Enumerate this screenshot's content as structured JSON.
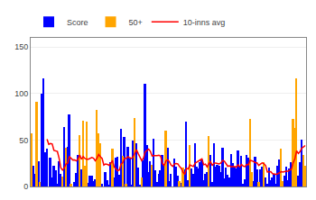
{
  "chart_data": {
    "type": "bar",
    "categories": [
      null,
      null,
      null,
      null,
      null,
      null,
      null,
      null,
      null,
      null,
      null,
      null,
      null,
      null,
      null,
      null,
      null,
      null,
      null,
      null,
      null,
      null,
      null,
      null,
      null,
      null,
      null,
      null,
      null,
      null,
      null,
      null,
      null,
      null,
      null,
      null,
      null,
      null,
      null,
      null,
      null,
      null,
      null,
      null,
      null,
      null,
      null,
      null,
      null,
      null,
      null,
      null,
      null,
      null,
      null,
      null,
      null,
      null,
      null,
      null,
      null,
      null,
      null,
      null,
      null,
      null,
      null,
      null,
      null,
      null,
      null,
      null,
      null,
      null,
      null,
      null,
      null,
      null,
      null,
      null,
      null,
      null,
      null,
      null,
      null,
      null,
      null,
      null,
      null,
      null,
      null,
      null,
      null,
      null,
      null,
      null,
      null,
      null,
      null,
      null,
      null,
      null,
      null,
      null,
      null,
      null,
      null,
      null,
      null,
      null,
      null,
      null,
      null,
      null,
      null,
      null,
      null,
      null,
      null,
      null,
      null,
      null,
      null,
      null,
      null,
      null,
      null,
      null,
      null,
      null,
      null,
      null,
      null,
      null,
      null,
      null,
      null,
      null,
      null,
      null,
      null,
      null,
      null,
      null,
      null,
      null,
      null,
      null,
      null,
      null,
      null,
      null,
      null,
      null,
      null,
      null,
      null,
      null,
      null,
      null
    ],
    "series": [
      {
        "name": "Score",
        "type": "bar",
        "color": "#0000ff",
        "values": [
          null,
          22,
          14,
          null,
          27,
          null,
          100,
          116,
          37,
          41,
          null,
          31,
          10,
          22,
          17,
          3,
          27,
          14,
          null,
          64,
          null,
          43,
          78,
          null,
          0,
          5,
          15,
          34,
          null,
          18,
          null,
          null,
          null,
          4,
          12,
          12,
          6,
          8,
          null,
          null,
          null,
          3,
          0,
          16,
          7,
          2,
          26,
          null,
          10,
          31,
          32,
          13,
          62,
          null,
          53,
          null,
          43,
          30,
          1,
          49,
          null,
          47,
          20,
          2,
          null,
          28,
          111,
          45,
          16,
          27,
          null,
          51,
          17,
          5,
          14,
          17,
          34,
          24,
          null,
          42,
          6,
          14,
          0,
          30,
          21,
          12,
          null,
          4,
          null,
          18,
          70,
          7,
          null,
          19,
          14,
          47,
          21,
          19,
          26,
          29,
          7,
          14,
          16,
          null,
          34,
          5,
          47,
          21,
          23,
          22,
          16,
          42,
          9,
          20,
          13,
          10,
          35,
          25,
          21,
          19,
          39,
          21,
          33,
          3,
          8,
          34,
          31,
          null,
          null,
          6,
          32,
          18,
          null,
          18,
          21,
          null,
          10,
          3,
          20,
          7,
          10,
          14,
          3,
          22,
          29,
          null,
          null,
          12,
          21,
          7,
          19,
          26,
          null,
          null,
          null,
          12,
          26,
          50,
          null,
          null
        ]
      },
      {
        "name": "50+",
        "type": "bar",
        "color": "#ffa500",
        "values": [
          57,
          null,
          null,
          91,
          null,
          5,
          null,
          null,
          null,
          null,
          0,
          null,
          null,
          null,
          null,
          null,
          null,
          null,
          11,
          null,
          42,
          null,
          null,
          3,
          null,
          null,
          null,
          null,
          55,
          null,
          71,
          22,
          70,
          null,
          null,
          null,
          null,
          null,
          82,
          57,
          47,
          null,
          null,
          null,
          null,
          null,
          null,
          41,
          null,
          null,
          null,
          null,
          null,
          33,
          null,
          3,
          null,
          null,
          null,
          null,
          74,
          null,
          null,
          null,
          10,
          null,
          null,
          null,
          null,
          null,
          23,
          null,
          null,
          null,
          null,
          null,
          null,
          null,
          60,
          null,
          null,
          null,
          null,
          null,
          null,
          null,
          6,
          null,
          20,
          null,
          null,
          null,
          45,
          null,
          null,
          null,
          null,
          null,
          null,
          null,
          null,
          null,
          null,
          54,
          null,
          null,
          null,
          null,
          null,
          null,
          null,
          null,
          null,
          null,
          null,
          null,
          null,
          null,
          null,
          null,
          null,
          null,
          null,
          null,
          null,
          null,
          null,
          73,
          16,
          null,
          null,
          null,
          5,
          null,
          null,
          26,
          null,
          null,
          null,
          null,
          null,
          null,
          null,
          null,
          null,
          41,
          6,
          null,
          null,
          null,
          null,
          null,
          73,
          63,
          116,
          null,
          null,
          null,
          34,
          22
        ]
      },
      {
        "name": "10-inns avg",
        "type": "line",
        "color": "#ff0000",
        "values": [
          null,
          null,
          null,
          null,
          null,
          null,
          null,
          null,
          null,
          51,
          45.3,
          46.2,
          45.8,
          38.9,
          37.9,
          37.7,
          30.4,
          20.2,
          17.6,
          19.9,
          24.1,
          25.3,
          32.1,
          30.2,
          28.5,
          28.7,
          27.5,
          29.5,
          33.9,
          29.3,
          32.2,
          30.1,
          29.3,
          29.4,
          30.6,
          31.3,
          30.4,
          27.8,
          30.5,
          34.4,
          32,
          30.1,
          23.1,
          24.3,
          23.8,
          22.8,
          24.8,
          28.1,
          20.9,
          18.3,
          16.8,
          17.8,
          24,
          25.7,
          30.3,
          30.4,
          32.1,
          31,
          30.1,
          31.9,
          36.1,
          39.5,
          35.3,
          32.2,
          27.9,
          30.4,
          37.2,
          38.7,
          40.2,
          38,
          32.9,
          33.3,
          33,
          33.3,
          33.7,
          32.6,
          24.9,
          22.8,
          27.2,
          28.7,
          27,
          23.3,
          21.6,
          24.1,
          24.8,
          24.3,
          21.5,
          19.5,
          15.5,
          13.1,
          19.5,
          18.8,
          23.3,
          22.2,
          21.5,
          25,
          26.5,
          28,
          28.6,
          29.7,
          23.4,
          24.1,
          21.2,
          24.7,
          26.7,
          22.5,
          25.1,
          25.3,
          25,
          24.3,
          25.2,
          28,
          27.3,
          23.9,
          21.8,
          22.3,
          21.1,
          21.5,
          21.3,
          21,
          23.3,
          21.2,
          23.6,
          21.9,
          21.4,
          23.8,
          23.4,
          28.2,
          27.7,
          26.4,
          25.7,
          25.4,
          22.6,
          24.1,
          25.4,
          24.6,
          22.5,
          15.5,
          15.9,
          16,
          13.8,
          13.4,
          13.2,
          13.6,
          14.4,
          15.9,
          15.5,
          16.4,
          16.5,
          16.5,
          17.4,
          18.6,
          25.6,
          29.7,
          38.4,
          35.5,
          37.5,
          41.3,
          42.6,
          44.1
        ]
      }
    ],
    "ylim": [
      0,
      160
    ],
    "yticks": [
      0,
      50,
      100,
      150
    ],
    "grid": true,
    "legend": "upper left",
    "tick_labels": "y",
    "stacked": false
  }
}
